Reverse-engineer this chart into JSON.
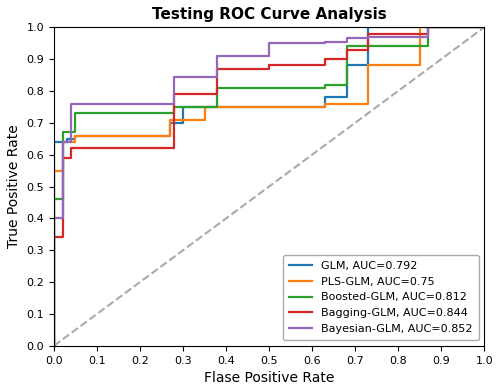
{
  "title": "Testing ROC Curve Analysis",
  "xlabel": "Flase Positive Rate",
  "ylabel": "True Positive Rate",
  "xlim": [
    0.0,
    1.0
  ],
  "ylim": [
    0.0,
    1.0
  ],
  "diagonal": {
    "color": "#aaaaaa",
    "linestyle": "--",
    "linewidth": 1.5
  },
  "models": [
    {
      "label": "GLM, AUC=0.792",
      "color": "#1f77b4",
      "fpf": [
        0.0,
        0.0,
        0.03,
        0.03,
        0.05,
        0.05,
        0.27,
        0.27,
        0.3,
        0.3,
        0.5,
        0.5,
        0.63,
        0.63,
        0.68,
        0.68,
        0.73,
        0.73,
        0.87,
        0.87,
        1.0
      ],
      "tpf": [
        0.0,
        0.64,
        0.64,
        0.65,
        0.65,
        0.66,
        0.66,
        0.7,
        0.7,
        0.75,
        0.75,
        0.75,
        0.75,
        0.78,
        0.78,
        0.88,
        0.88,
        1.0,
        1.0,
        1.0,
        1.0
      ]
    },
    {
      "label": "PLS-GLM, AUC=0.75",
      "color": "#ff7f0e",
      "fpf": [
        0.0,
        0.0,
        0.02,
        0.02,
        0.05,
        0.05,
        0.27,
        0.27,
        0.35,
        0.35,
        0.5,
        0.5,
        0.63,
        0.63,
        0.73,
        0.73,
        0.85,
        0.85,
        1.0
      ],
      "tpf": [
        0.0,
        0.55,
        0.55,
        0.64,
        0.64,
        0.66,
        0.66,
        0.71,
        0.71,
        0.75,
        0.75,
        0.75,
        0.75,
        0.76,
        0.76,
        0.88,
        0.88,
        1.0,
        1.0
      ]
    },
    {
      "label": "Boosted-GLM, AUC=0.812",
      "color": "#2ca02c",
      "fpf": [
        0.0,
        0.0,
        0.02,
        0.02,
        0.05,
        0.05,
        0.28,
        0.28,
        0.38,
        0.38,
        0.63,
        0.63,
        0.68,
        0.68,
        0.87,
        0.87,
        1.0
      ],
      "tpf": [
        0.0,
        0.46,
        0.46,
        0.67,
        0.67,
        0.73,
        0.73,
        0.75,
        0.75,
        0.81,
        0.81,
        0.82,
        0.82,
        0.94,
        0.94,
        1.0,
        1.0
      ]
    },
    {
      "label": "Bagging-GLM, AUC=0.844",
      "color": "#d62728",
      "fpf": [
        0.0,
        0.0,
        0.02,
        0.02,
        0.04,
        0.04,
        0.28,
        0.28,
        0.38,
        0.38,
        0.5,
        0.5,
        0.63,
        0.63,
        0.68,
        0.68,
        0.73,
        0.73,
        0.87,
        0.87,
        1.0
      ],
      "tpf": [
        0.0,
        0.34,
        0.34,
        0.59,
        0.59,
        0.62,
        0.62,
        0.79,
        0.79,
        0.87,
        0.87,
        0.88,
        0.88,
        0.9,
        0.9,
        0.93,
        0.93,
        0.98,
        0.98,
        1.0,
        1.0
      ]
    },
    {
      "label": "Bayesian-GLM, AUC=0.852",
      "color": "#9467bd",
      "fpf": [
        0.0,
        0.0,
        0.02,
        0.02,
        0.04,
        0.04,
        0.28,
        0.28,
        0.38,
        0.38,
        0.5,
        0.5,
        0.63,
        0.63,
        0.68,
        0.68,
        0.73,
        0.73,
        0.87,
        0.87,
        1.0
      ],
      "tpf": [
        0.0,
        0.4,
        0.4,
        0.64,
        0.64,
        0.76,
        0.76,
        0.845,
        0.845,
        0.91,
        0.91,
        0.95,
        0.95,
        0.955,
        0.955,
        0.965,
        0.965,
        0.97,
        0.97,
        1.0,
        1.0
      ]
    }
  ],
  "legend_loc": "lower right",
  "tick_fontsize": 8,
  "label_fontsize": 10,
  "title_fontsize": 11,
  "linewidth": 1.6,
  "figsize": [
    5.0,
    3.92
  ],
  "dpi": 100
}
